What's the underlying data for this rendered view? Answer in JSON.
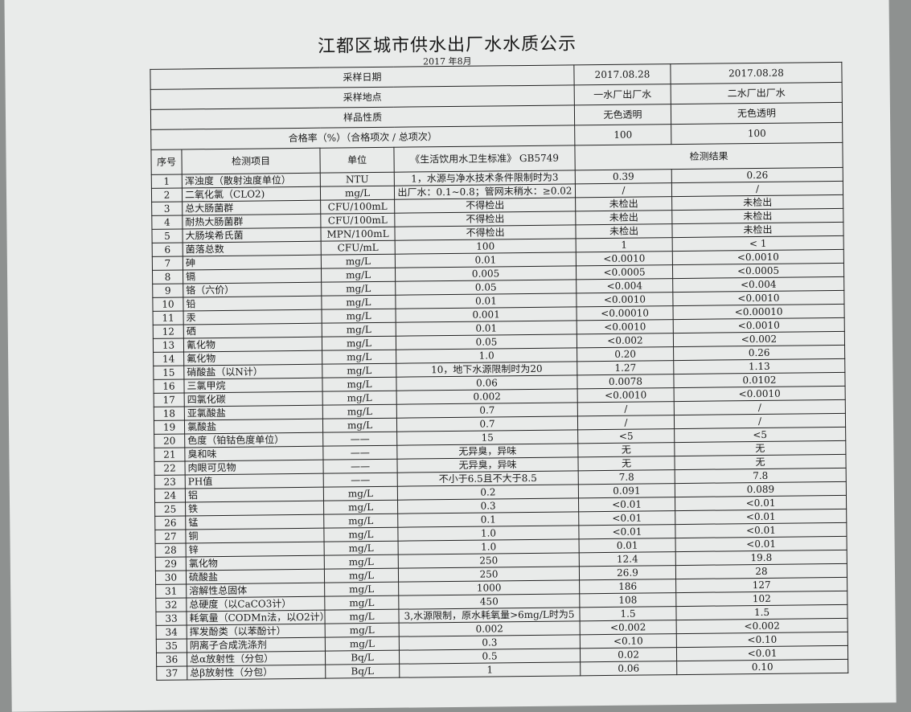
{
  "document": {
    "title": "江都区城市供水出厂水水质公示",
    "subtitle": "2017 年8月"
  },
  "summary": [
    {
      "label": "采样日期",
      "values": [
        "2017.08.28",
        "2017.08.28"
      ]
    },
    {
      "label": "采样地点",
      "values": [
        "一水厂出厂水",
        "二水厂出厂水"
      ]
    },
    {
      "label": "样品性质",
      "values": [
        "无色透明",
        "无色透明"
      ]
    },
    {
      "label": "合格率（%）（合格项次 / 总项次）",
      "values": [
        "100",
        "100"
      ]
    }
  ],
  "columns": {
    "seq": "序号",
    "item": "检测项目",
    "unit": "单位",
    "standard": "《生活饮用水卫生标准》 GB5749",
    "result": "检测结果"
  },
  "rows": [
    [
      "1",
      "浑浊度（散射浊度单位）",
      "NTU",
      "1，水源与净水技术条件限制时为3",
      "0.39",
      "0.26"
    ],
    [
      "2",
      "二氧化氯（CLO2)",
      "mg/L",
      "出厂水：0.1~0.8；管网末稍水：≥0.02",
      "/",
      "/"
    ],
    [
      "3",
      "总大肠菌群",
      "CFU/100mL",
      "不得检出",
      "未检出",
      "未检出"
    ],
    [
      "4",
      "耐热大肠菌群",
      "CFU/100mL",
      "不得检出",
      "未检出",
      "未检出"
    ],
    [
      "5",
      "大肠埃希氏菌",
      "MPN/100mL",
      "不得检出",
      "未检出",
      "未检出"
    ],
    [
      "6",
      "菌落总数",
      "CFU/mL",
      "100",
      "1",
      "< 1"
    ],
    [
      "7",
      "砷",
      "mg/L",
      "0.01",
      "<0.0010",
      "<0.0010"
    ],
    [
      "8",
      "镉",
      "mg/L",
      "0.005",
      "<0.0005",
      "<0.0005"
    ],
    [
      "9",
      "铬（六价）",
      "mg/L",
      "0.05",
      "<0.004",
      "<0.004"
    ],
    [
      "10",
      "铅",
      "mg/L",
      "0.01",
      "<0.0010",
      "<0.0010"
    ],
    [
      "11",
      "汞",
      "mg/L",
      "0.001",
      "<0.00010",
      "<0.00010"
    ],
    [
      "12",
      "硒",
      "mg/L",
      "0.01",
      "<0.0010",
      "<0.0010"
    ],
    [
      "13",
      "氰化物",
      "mg/L",
      "0.05",
      "<0.002",
      "<0.002"
    ],
    [
      "14",
      "氟化物",
      "mg/L",
      "1.0",
      "0.20",
      "0.26"
    ],
    [
      "15",
      "硝酸盐（以N计）",
      "mg/L",
      "10，地下水源限制时为20",
      "1.27",
      "1.13"
    ],
    [
      "16",
      "三氯甲烷",
      "mg/L",
      "0.06",
      "0.0078",
      "0.0102"
    ],
    [
      "17",
      "四氯化碳",
      "mg/L",
      "0.002",
      "<0.0010",
      "<0.0010"
    ],
    [
      "18",
      "亚氯酸盐",
      "mg/L",
      "0.7",
      "/",
      "/"
    ],
    [
      "19",
      "氯酸盐",
      "mg/L",
      "0.7",
      "/",
      "/"
    ],
    [
      "20",
      "色度（铂钴色度单位）",
      "——",
      "15",
      "<5",
      "<5"
    ],
    [
      "21",
      "臭和味",
      "——",
      "无异臭，异味",
      "无",
      "无"
    ],
    [
      "22",
      "肉眼可见物",
      "——",
      "无异臭，异味",
      "无",
      "无"
    ],
    [
      "23",
      "PH值",
      "——",
      "不小于6.5且不大于8.5",
      "7.8",
      "7.8"
    ],
    [
      "24",
      "铝",
      "mg/L",
      "0.2",
      "0.091",
      "0.089"
    ],
    [
      "25",
      "铁",
      "mg/L",
      "0.3",
      "<0.01",
      "<0.01"
    ],
    [
      "26",
      "锰",
      "mg/L",
      "0.1",
      "<0.01",
      "<0.01"
    ],
    [
      "27",
      "铜",
      "mg/L",
      "1.0",
      "<0.01",
      "<0.01"
    ],
    [
      "28",
      "锌",
      "mg/L",
      "1.0",
      "0.01",
      "<0.01"
    ],
    [
      "29",
      "氯化物",
      "mg/L",
      "250",
      "12.4",
      "19.8"
    ],
    [
      "30",
      "硫酸盐",
      "mg/L",
      "250",
      "26.9",
      "28"
    ],
    [
      "31",
      "溶解性总固体",
      "mg/L",
      "1000",
      "186",
      "127"
    ],
    [
      "32",
      "总硬度（以CaCO3计）",
      "mg/L",
      "450",
      "108",
      "102"
    ],
    [
      "33",
      "耗氧量（CODMn法，以O2计）",
      "mg/L",
      "3,水源限制，原水耗氧量>6mg/L时为5",
      "1.5",
      "1.5"
    ],
    [
      "34",
      "挥发酚类（以苯酚计）",
      "mg/L",
      "0.002",
      "<0.002",
      "<0.002"
    ],
    [
      "35",
      "阴离子合成洗涤剂",
      "mg/L",
      "0.3",
      "<0.10",
      "<0.10"
    ],
    [
      "36",
      "总α放射性（分包）",
      "Bq/L",
      "0.5",
      "0.02",
      "<0.01"
    ],
    [
      "37",
      "总β放射性（分包）",
      "Bq/L",
      "1",
      "0.06",
      "0.10"
    ]
  ]
}
